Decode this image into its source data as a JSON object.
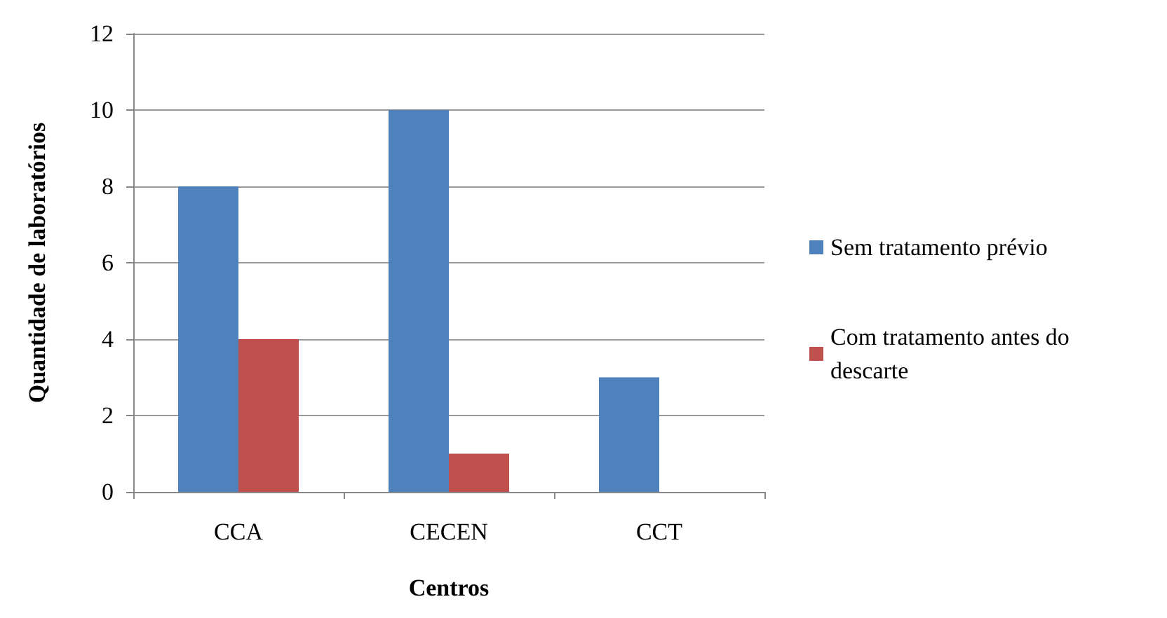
{
  "chart_data": {
    "type": "bar",
    "xlabel": "Centros",
    "ylabel": "Quantidade de laboratórios",
    "categories": [
      "CCA",
      "CECEN",
      "CCT"
    ],
    "series": [
      {
        "name": "Sem tratamento prévio",
        "color": "#4f81bd",
        "values": [
          8,
          10,
          3
        ]
      },
      {
        "name": "Com tratamento antes do descarte",
        "color": "#c0504d",
        "values": [
          4,
          1,
          0
        ]
      }
    ],
    "ylim": [
      0,
      12
    ],
    "yticks": [
      0,
      2,
      4,
      6,
      8,
      10,
      12
    ],
    "grid": "y",
    "legend": "right"
  }
}
